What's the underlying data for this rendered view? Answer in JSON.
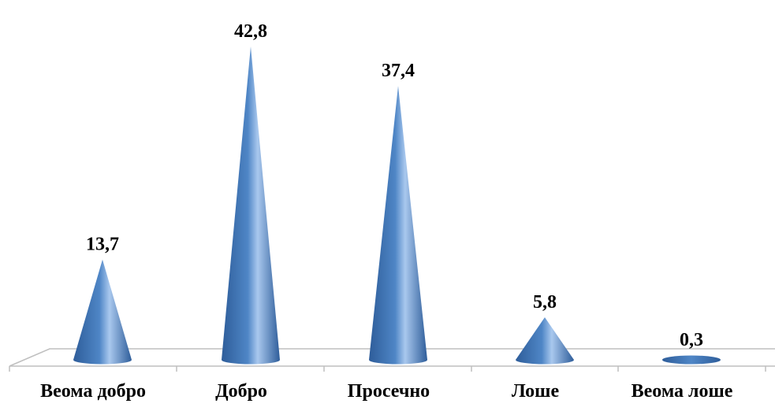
{
  "chart_data": {
    "type": "bar",
    "mark": "cone",
    "categories": [
      "Веома добро",
      "Добро",
      "Просечно",
      "Лоше",
      "Веома лоше"
    ],
    "values": [
      13.7,
      42.8,
      37.4,
      5.8,
      0.3
    ],
    "value_labels": [
      "13,7",
      "42,8",
      "37,4",
      "5,8",
      "0,3"
    ],
    "title": "",
    "xlabel": "",
    "ylabel": "",
    "ylim": [
      0,
      45
    ],
    "grid": false,
    "legend": "none",
    "colors": {
      "cone_dark": "#2e5d9a",
      "cone_mid": "#4f86c6",
      "cone_light": "#a9c8ee",
      "floor_line": "#bfbfbf",
      "text": "#000000"
    }
  }
}
